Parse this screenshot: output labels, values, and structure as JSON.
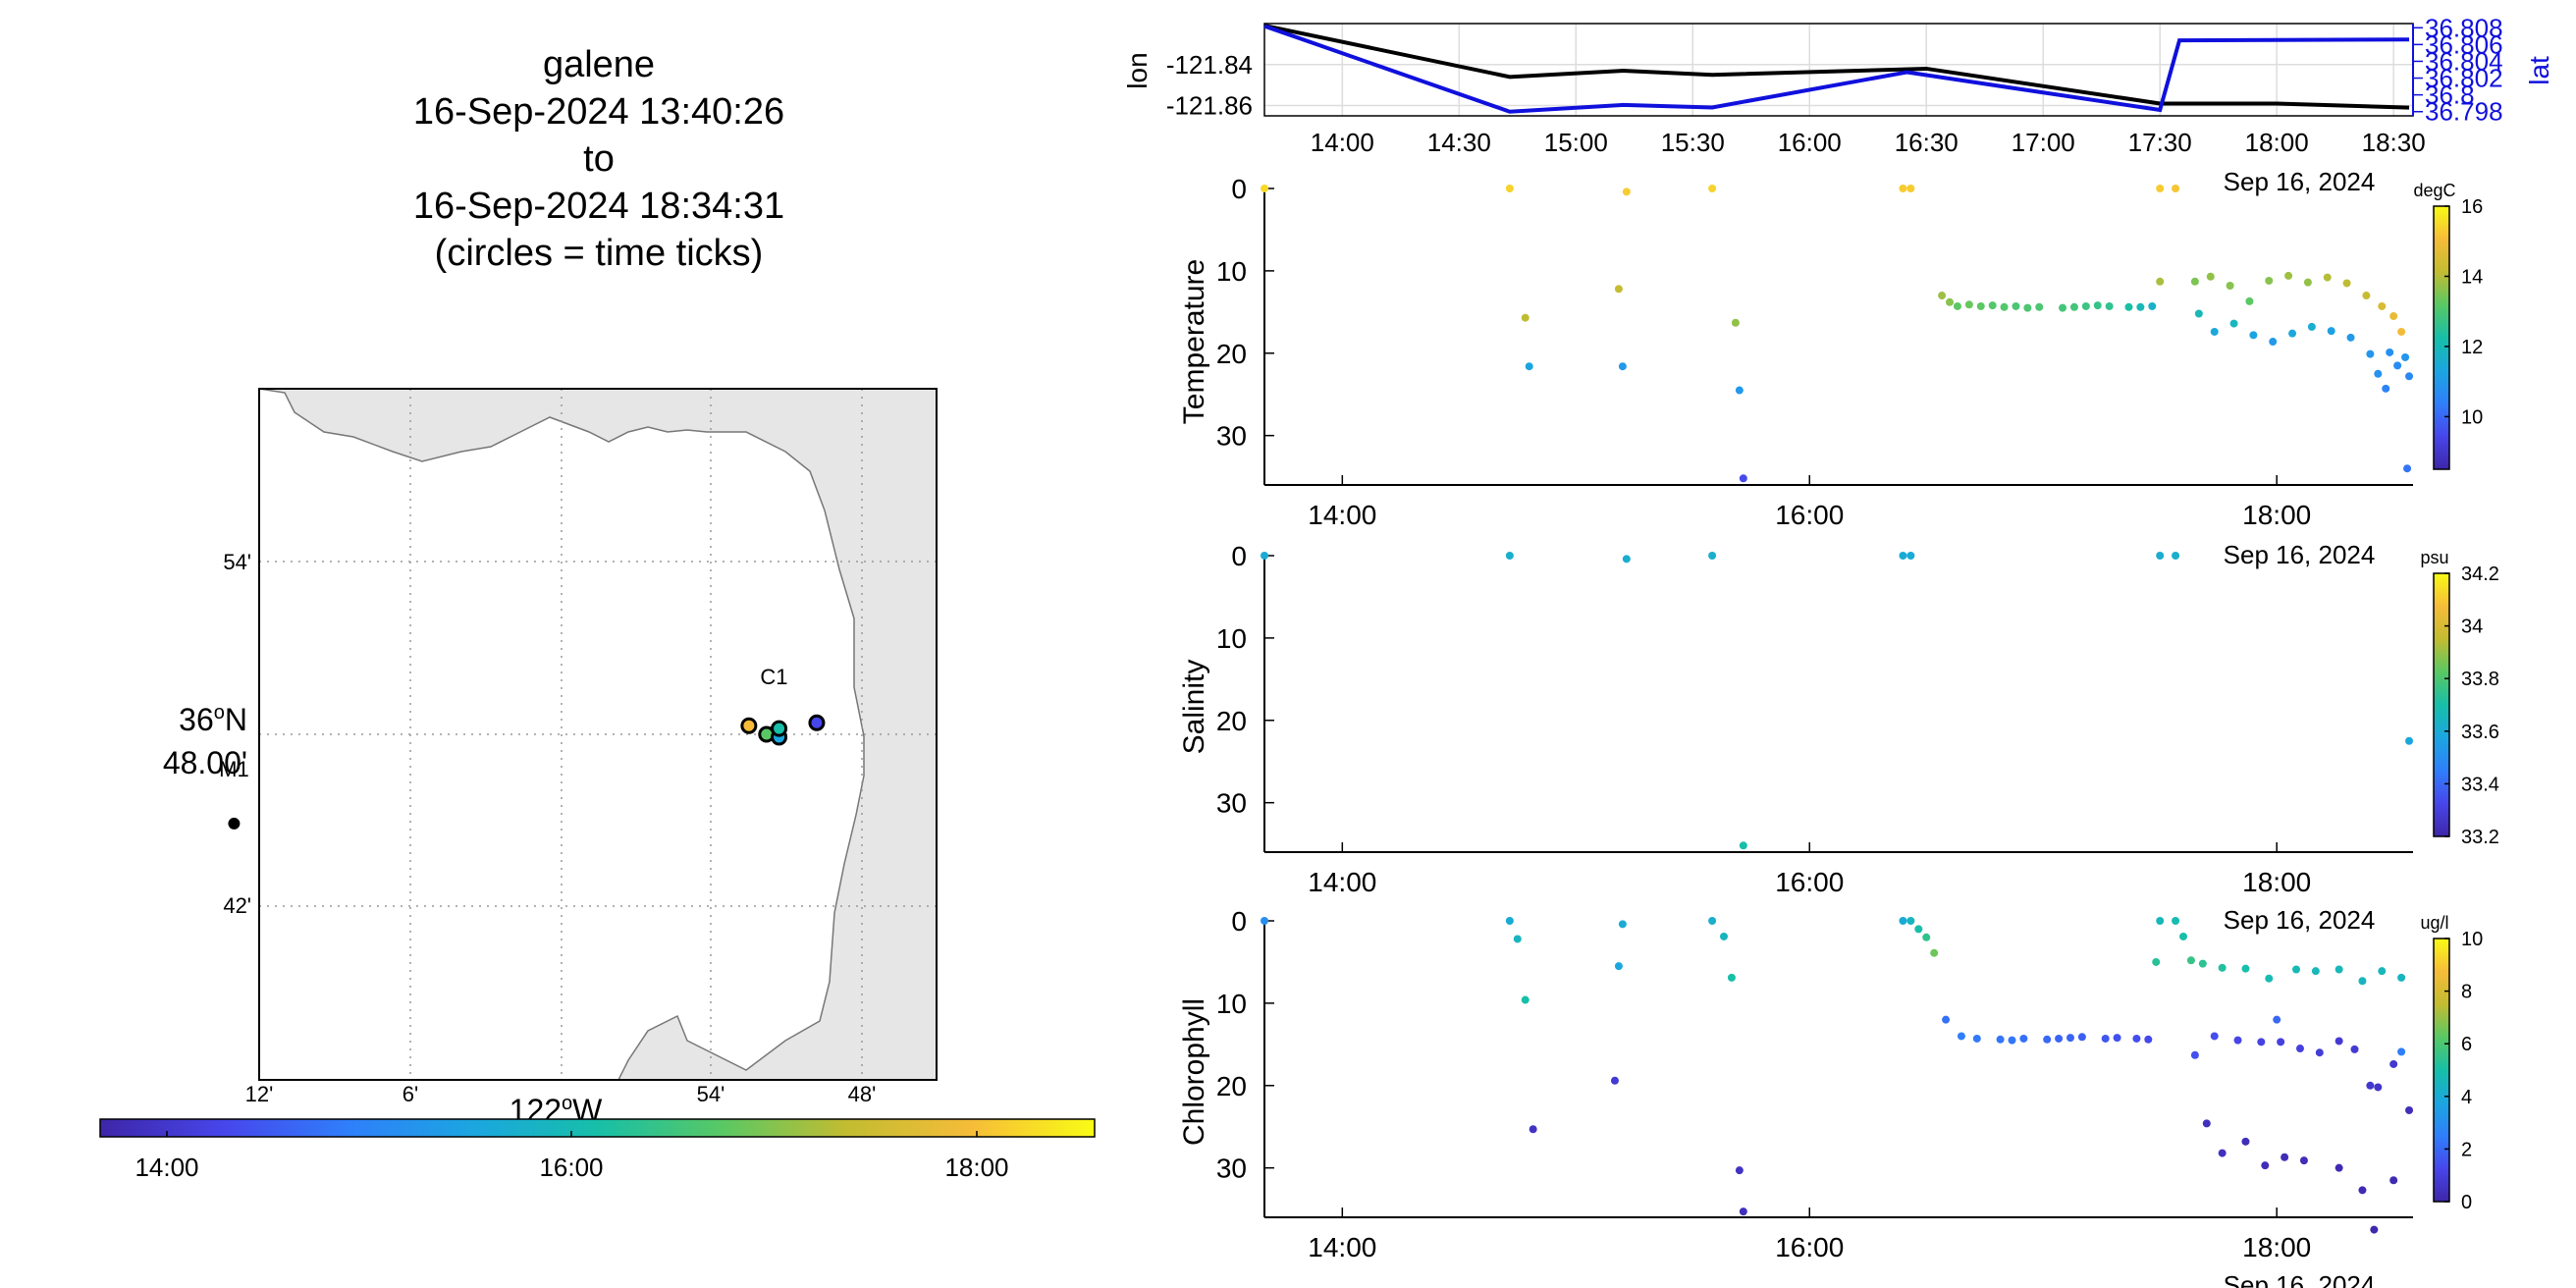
{
  "title": {
    "line1": "galene",
    "line2": "16-Sep-2024 13:40:26",
    "line3": "to",
    "line4": "16-Sep-2024 18:34:31",
    "line5": "(circles = time ticks)"
  },
  "colors": {
    "lon_line": "#000000",
    "lat_line": "#1010dd",
    "land": "#e6e6e6",
    "grid": "#999999",
    "colormap": [
      "#3e26a8",
      "#4746eb",
      "#2f7ffb",
      "#1ba6e0",
      "#17bfa8",
      "#59c864",
      "#c2bc31",
      "#f6bc39",
      "#f9fb15"
    ]
  },
  "map": {
    "lat_labels": [
      "54'",
      "48.00'",
      "42'"
    ],
    "lat_degree_label": "36°N",
    "lon_labels": [
      "12'",
      "6'",
      "54'",
      "48'"
    ],
    "lon_degree_label": "122°W",
    "stations": [
      {
        "name": "M1",
        "lon_min": 13.0,
        "lat_min": 44.9
      },
      {
        "name": "C1",
        "lon_min": 51.5,
        "lat_min": 48.1
      }
    ],
    "track_ticks": [
      {
        "lon_min": 52.5,
        "lat_min": 48.3,
        "color": "#f6bc39"
      },
      {
        "lon_min": 51.8,
        "lat_min": 48.0,
        "color": "#59c864"
      },
      {
        "lon_min": 51.3,
        "lat_min": 47.9,
        "color": "#1ba6e0"
      },
      {
        "lon_min": 51.3,
        "lat_min": 48.2,
        "color": "#17bfa8"
      },
      {
        "lon_min": 49.8,
        "lat_min": 48.4,
        "color": "#4746eb"
      }
    ]
  },
  "time_colorbar": {
    "labels": [
      "14:00",
      "16:00",
      "18:00"
    ]
  },
  "chart_data": [
    {
      "type": "line",
      "name": "position",
      "xlabel": "",
      "ylabel": "lon",
      "ylabel_right": "lat",
      "x_ticks": [
        "14:00",
        "14:30",
        "15:00",
        "15:30",
        "16:00",
        "16:30",
        "17:00",
        "17:30",
        "18:00",
        "18:30"
      ],
      "date_label": "Sep 16, 2024",
      "xlim": [
        "13:40",
        "18:35"
      ],
      "y_left_ticks": [
        "-121.84",
        "-121.86"
      ],
      "y_left_lim": [
        -121.865,
        -121.82
      ],
      "y_right_ticks": [
        "36.808",
        "36.806",
        "36.804",
        "36.802",
        "36.8",
        "36.798"
      ],
      "y_right_lim": [
        36.7975,
        36.8085
      ],
      "series": [
        {
          "name": "lon",
          "axis": "left",
          "x": [
            "13:40",
            "14:43",
            "15:12",
            "15:35",
            "16:30",
            "17:30",
            "18:00",
            "18:34"
          ],
          "values": [
            -121.821,
            -121.846,
            -121.843,
            -121.845,
            -121.842,
            -121.859,
            -121.859,
            -121.861
          ]
        },
        {
          "name": "lat",
          "axis": "right",
          "x": [
            "13:40",
            "14:43",
            "15:12",
            "15:35",
            "16:25",
            "17:30",
            "17:35",
            "18:34"
          ],
          "values": [
            36.8082,
            36.798,
            36.7988,
            36.7985,
            36.8027,
            36.7982,
            36.8065,
            36.8066
          ]
        }
      ]
    },
    {
      "type": "scatter",
      "name": "temperature",
      "xlabel": "",
      "ylabel": "Temperature",
      "x_ticks": [
        "14:00",
        "16:00",
        "18:00"
      ],
      "date_label": "Sep 16, 2024",
      "xlim": [
        "13:40",
        "18:35"
      ],
      "y_ticks": [
        "0",
        "10",
        "20",
        "30"
      ],
      "ylim": [
        0,
        36
      ],
      "colorbar": {
        "unit": "degC",
        "ticks": [
          "10",
          "12",
          "14",
          "16"
        ],
        "range": [
          8.5,
          16
        ]
      },
      "points": [
        [
          "13:40",
          0,
          15.5
        ],
        [
          "14:43",
          0,
          15.4
        ],
        [
          "15:13",
          0.4,
          15.3
        ],
        [
          "15:35",
          0,
          15.4
        ],
        [
          "16:24",
          0,
          15.3
        ],
        [
          "16:26",
          0,
          15.3
        ],
        [
          "17:30",
          0,
          15.3
        ],
        [
          "17:34",
          0,
          15.2
        ],
        [
          "14:47",
          15.7,
          14.1
        ],
        [
          "14:48",
          21.6,
          11.3
        ],
        [
          "15:11",
          12.2,
          14.2
        ],
        [
          "15:12",
          21.6,
          11.0
        ],
        [
          "15:41",
          16.3,
          13.7
        ],
        [
          "15:42",
          24.5,
          11.0
        ],
        [
          "15:43",
          35.2,
          9.5
        ],
        [
          "16:34",
          13.0,
          13.8
        ],
        [
          "16:36",
          13.8,
          13.6
        ],
        [
          "16:38",
          14.3,
          13.2
        ],
        [
          "16:41",
          14.1,
          13.3
        ],
        [
          "16:44",
          14.3,
          13.2
        ],
        [
          "16:47",
          14.2,
          13.1
        ],
        [
          "16:50",
          14.4,
          13.1
        ],
        [
          "16:53",
          14.3,
          13.0
        ],
        [
          "16:56",
          14.5,
          13.0
        ],
        [
          "16:59",
          14.4,
          13.0
        ],
        [
          "17:05",
          14.5,
          12.9
        ],
        [
          "17:08",
          14.4,
          12.9
        ],
        [
          "17:11",
          14.3,
          12.8
        ],
        [
          "17:14",
          14.2,
          12.7
        ],
        [
          "17:17",
          14.3,
          12.6
        ],
        [
          "17:22",
          14.4,
          12.3
        ],
        [
          "17:25",
          14.4,
          12.0
        ],
        [
          "17:28",
          14.3,
          11.7
        ],
        [
          "17:30",
          11.3,
          13.9
        ],
        [
          "17:39",
          11.3,
          13.5
        ],
        [
          "17:40",
          15.2,
          12.0
        ],
        [
          "17:43",
          10.7,
          13.7
        ],
        [
          "17:44",
          17.4,
          11.4
        ],
        [
          "17:48",
          11.8,
          13.6
        ],
        [
          "17:49",
          16.4,
          11.9
        ],
        [
          "17:53",
          13.7,
          13.2
        ],
        [
          "17:54",
          17.8,
          11.3
        ],
        [
          "17:58",
          11.2,
          13.6
        ],
        [
          "17:59",
          18.6,
          11.0
        ],
        [
          "18:03",
          10.6,
          13.8
        ],
        [
          "18:04",
          17.6,
          11.4
        ],
        [
          "18:08",
          11.4,
          13.7
        ],
        [
          "18:09",
          16.8,
          11.6
        ],
        [
          "18:13",
          10.8,
          14.0
        ],
        [
          "18:14",
          17.3,
          11.2
        ],
        [
          "18:18",
          11.5,
          14.1
        ],
        [
          "18:19",
          18.1,
          11.0
        ],
        [
          "18:23",
          13.0,
          14.2
        ],
        [
          "18:24",
          20.1,
          10.9
        ],
        [
          "18:26",
          22.5,
          10.8
        ],
        [
          "18:27",
          14.3,
          14.5
        ],
        [
          "18:29",
          19.9,
          10.8
        ],
        [
          "18:30",
          15.5,
          14.8
        ],
        [
          "18:31",
          21.5,
          10.7
        ],
        [
          "18:32",
          17.4,
          15.0
        ],
        [
          "18:33",
          20.5,
          10.9
        ],
        [
          "18:34",
          22.8,
          10.6
        ],
        [
          "18:33.5",
          34.0,
          10.2
        ],
        [
          "18:28",
          24.3,
          10.5
        ]
      ]
    },
    {
      "type": "scatter",
      "name": "salinity",
      "xlabel": "",
      "ylabel": "Salinity",
      "x_ticks": [
        "14:00",
        "16:00",
        "18:00"
      ],
      "date_label": "Sep 16, 2024",
      "xlim": [
        "13:40",
        "18:35"
      ],
      "y_ticks": [
        "0",
        "10",
        "20",
        "30"
      ],
      "ylim": [
        0,
        36
      ],
      "colorbar": {
        "unit": "psu",
        "ticks": [
          "33.2",
          "33.4",
          "33.6",
          "33.8",
          "34",
          "34.2"
        ],
        "range": [
          33.2,
          34.2
        ]
      },
      "points": [
        [
          "13:40",
          0,
          33.6
        ],
        [
          "14:43",
          0,
          33.62
        ],
        [
          "15:13",
          0.4,
          33.61
        ],
        [
          "15:35",
          0,
          33.62
        ],
        [
          "16:24",
          0,
          33.6
        ],
        [
          "16:26",
          0,
          33.6
        ],
        [
          "17:30",
          0,
          33.61
        ],
        [
          "17:34",
          0,
          33.62
        ],
        [
          "15:43",
          35.2,
          33.7
        ],
        [
          "18:34",
          22.5,
          33.58
        ]
      ]
    },
    {
      "type": "scatter",
      "name": "chlorophyll",
      "xlabel": "",
      "ylabel": "Chlorophyll",
      "x_ticks": [
        "14:00",
        "16:00",
        "18:00"
      ],
      "date_label": "Sep 16, 2024",
      "xlim": [
        "13:40",
        "18:35"
      ],
      "y_ticks": [
        "0",
        "10",
        "20",
        "30"
      ],
      "ylim": [
        0,
        36
      ],
      "colorbar": {
        "unit": "ug/l",
        "ticks": [
          "0",
          "2",
          "4",
          "6",
          "8",
          "10"
        ],
        "range": [
          0,
          10
        ]
      },
      "points": [
        [
          "13:40",
          0,
          3.0
        ],
        [
          "14:43",
          0,
          4.0
        ],
        [
          "14:45",
          2.2,
          4.5
        ],
        [
          "14:47",
          9.6,
          5.0
        ],
        [
          "14:49",
          25.3,
          0.5
        ],
        [
          "15:12",
          0.4,
          4.0
        ],
        [
          "15:11",
          5.5,
          3.8
        ],
        [
          "15:10",
          19.4,
          0.8
        ],
        [
          "15:35",
          0,
          4.2
        ],
        [
          "15:38",
          1.9,
          4.5
        ],
        [
          "15:40",
          6.9,
          5.0
        ],
        [
          "15:42",
          30.3,
          0.5
        ],
        [
          "15:43",
          35.3,
          0.4
        ],
        [
          "16:24",
          0,
          4.0
        ],
        [
          "16:26",
          0,
          4.5
        ],
        [
          "16:28",
          1.0,
          5.0
        ],
        [
          "16:30",
          2.0,
          5.5
        ],
        [
          "16:32",
          3.9,
          6.5
        ],
        [
          "16:35",
          12.0,
          2.2
        ],
        [
          "16:39",
          14.0,
          2.5
        ],
        [
          "16:43",
          14.3,
          2.4
        ],
        [
          "16:49",
          14.4,
          2.3
        ],
        [
          "16:52",
          14.5,
          2.3
        ],
        [
          "16:55",
          14.3,
          2.2
        ],
        [
          "17:01",
          14.4,
          2.0
        ],
        [
          "17:04",
          14.3,
          1.9
        ],
        [
          "17:07",
          14.2,
          1.9
        ],
        [
          "17:10",
          14.1,
          1.8
        ],
        [
          "17:16",
          14.3,
          1.6
        ],
        [
          "17:19",
          14.2,
          1.5
        ],
        [
          "17:24",
          14.3,
          1.4
        ],
        [
          "17:27",
          14.4,
          1.3
        ],
        [
          "17:29",
          5.0,
          5.3
        ],
        [
          "17:30",
          0,
          4.6
        ],
        [
          "17:34",
          0,
          4.8
        ],
        [
          "17:36",
          1.9,
          5.0
        ],
        [
          "17:38",
          4.8,
          5.6
        ],
        [
          "17:41",
          5.2,
          5.4
        ],
        [
          "17:46",
          5.7,
          5.2
        ],
        [
          "17:52",
          5.8,
          5.0
        ],
        [
          "17:58",
          7.0,
          4.8
        ],
        [
          "18:05",
          5.9,
          4.7
        ],
        [
          "18:10",
          6.1,
          4.6
        ],
        [
          "18:16",
          5.9,
          4.6
        ],
        [
          "18:22",
          7.3,
          4.5
        ],
        [
          "18:27",
          6.1,
          4.6
        ],
        [
          "18:32",
          6.9,
          4.5
        ],
        [
          "17:39",
          16.3,
          1.5
        ],
        [
          "17:44",
          14.0,
          1.4
        ],
        [
          "17:50",
          14.5,
          1.2
        ],
        [
          "17:56",
          14.7,
          1.1
        ],
        [
          "18:00",
          12.0,
          2.0
        ],
        [
          "18:01",
          14.7,
          1.0
        ],
        [
          "18:06",
          15.5,
          1.0
        ],
        [
          "18:11",
          16.0,
          0.9
        ],
        [
          "18:16",
          14.6,
          0.8
        ],
        [
          "18:20",
          15.6,
          0.8
        ],
        [
          "18:24",
          20.0,
          0.7
        ],
        [
          "18:26",
          20.2,
          0.6
        ],
        [
          "18:30",
          17.4,
          0.7
        ],
        [
          "18:32",
          15.9,
          2.5
        ],
        [
          "17:42",
          24.6,
          0.4
        ],
        [
          "17:46",
          28.2,
          0.4
        ],
        [
          "17:52",
          26.8,
          0.3
        ],
        [
          "17:57",
          29.7,
          0.3
        ],
        [
          "18:02",
          28.7,
          0.3
        ],
        [
          "18:07",
          29.1,
          0.3
        ],
        [
          "18:16",
          30.0,
          0.2
        ],
        [
          "18:22",
          32.7,
          0.2
        ],
        [
          "18:25",
          37.5,
          0.1
        ],
        [
          "18:30",
          31.5,
          0.2
        ],
        [
          "18:34",
          23.0,
          0.3
        ]
      ]
    }
  ]
}
